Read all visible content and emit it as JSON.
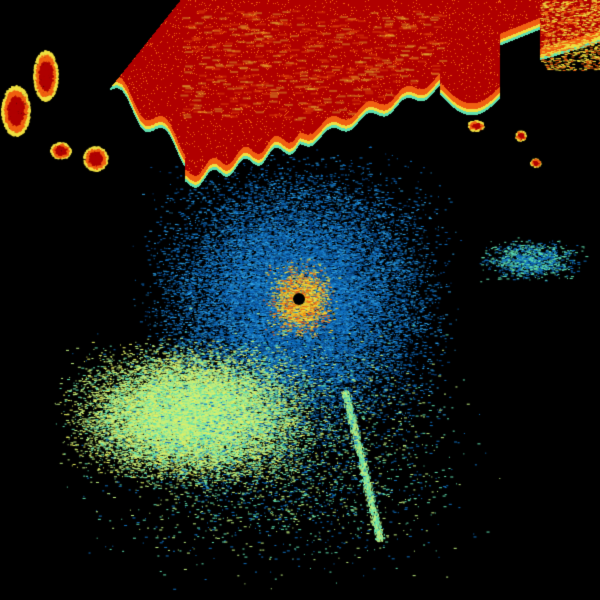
{
  "image": {
    "kind": "radar-reflectivity-scan",
    "colors": {
      "background": "#000000",
      "storm_core": "#b00000",
      "storm_edge_orange": "#f06010",
      "storm_edge_yellow": "#f0e040",
      "clutter_blue": "#1070c0",
      "light_blue": "#30a0e0",
      "green_yellow": "#c0f080",
      "cyan_green": "#60e0b0",
      "center_yellow": "#f0c020"
    }
  }
}
